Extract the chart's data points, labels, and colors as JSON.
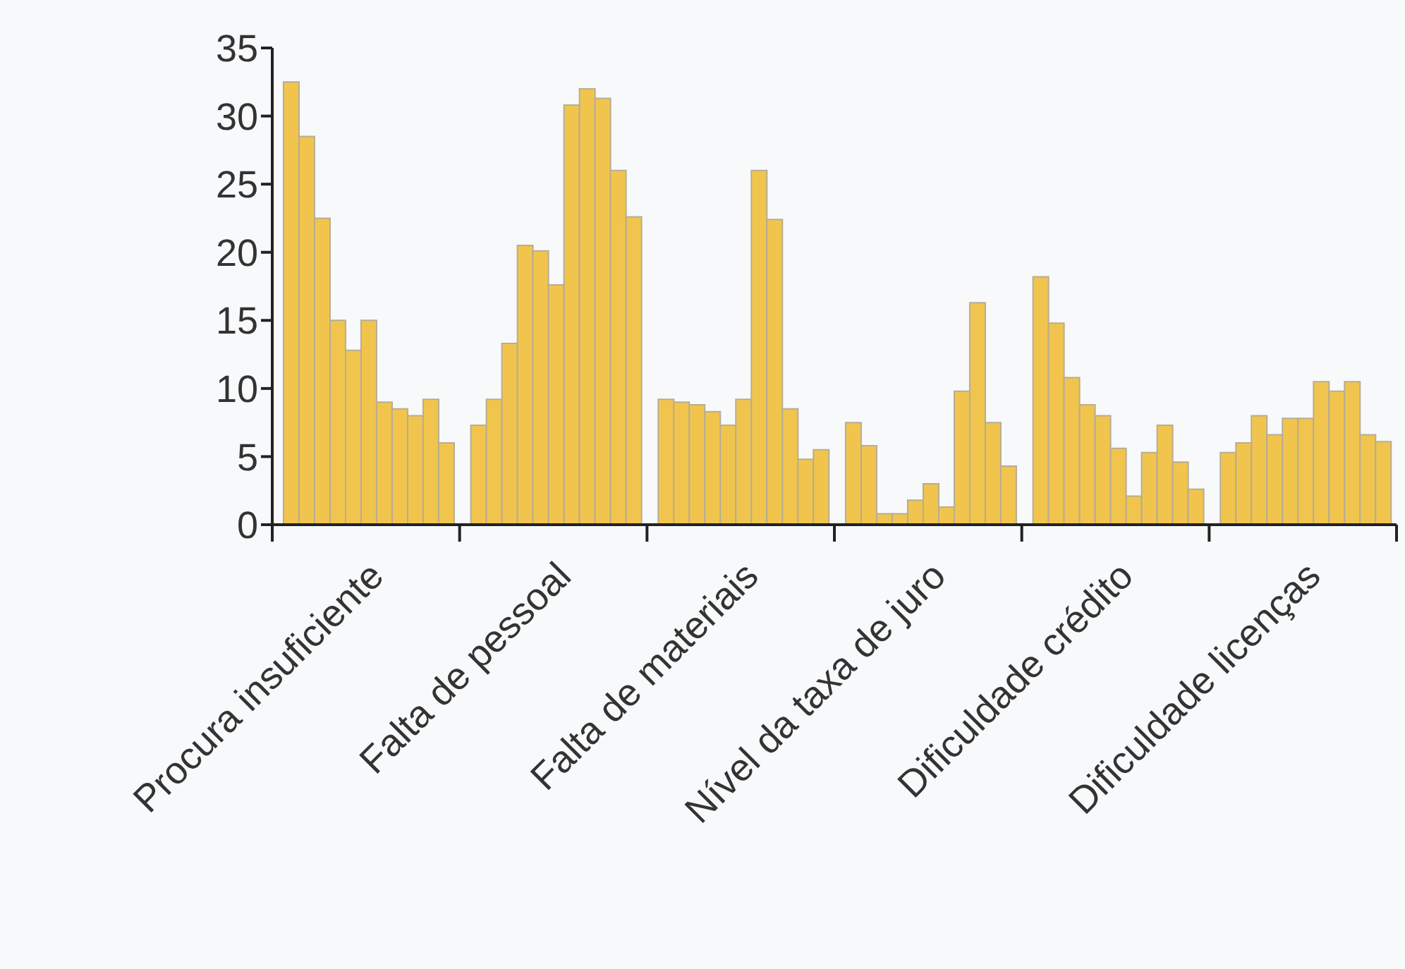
{
  "chart_data": {
    "type": "bar",
    "categories": [
      "Procura insuficiente",
      "Falta de pessoal",
      "Falta de materiais",
      "Nível da taxa de juro",
      "Dificuldade crédito",
      "Dificuldade licenças"
    ],
    "series": [
      {
        "color": "#f1c54d",
        "values": [
          32.5,
          7.3,
          9.2,
          7.5,
          18.2,
          5.3
        ]
      },
      {
        "color": "#f1c54d",
        "values": [
          28.5,
          9.2,
          9.0,
          5.8,
          14.8,
          6.0
        ]
      },
      {
        "color": "#f1c54d",
        "values": [
          22.5,
          13.3,
          8.8,
          0.8,
          10.8,
          8.0
        ]
      },
      {
        "color": "#f1c54d",
        "values": [
          15.0,
          20.5,
          8.3,
          0.8,
          8.8,
          6.6
        ]
      },
      {
        "color": "#f1c54d",
        "values": [
          12.8,
          20.1,
          7.3,
          1.8,
          8.0,
          7.8
        ]
      },
      {
        "color": "#f1c54d",
        "values": [
          15.0,
          17.6,
          9.2,
          3.0,
          5.6,
          7.8
        ]
      },
      {
        "color": "#f1c54d",
        "values": [
          9.0,
          30.8,
          26.0,
          1.3,
          2.1,
          10.5
        ]
      },
      {
        "color": "#f1c54d",
        "values": [
          8.5,
          32.0,
          22.4,
          9.8,
          5.3,
          9.8
        ]
      },
      {
        "color": "#f1c54d",
        "values": [
          8.0,
          31.3,
          8.5,
          16.3,
          7.3,
          10.5
        ]
      },
      {
        "color": "#f1c54d",
        "values": [
          9.2,
          26.0,
          4.8,
          7.5,
          4.6,
          6.6
        ]
      },
      {
        "color": "#f1c54d",
        "values": [
          6.0,
          22.6,
          5.5,
          4.3,
          2.6,
          6.1
        ]
      }
    ],
    "ylim": [
      0,
      35
    ],
    "yticks": [
      0,
      5,
      10,
      15,
      20,
      25,
      30,
      35
    ]
  }
}
